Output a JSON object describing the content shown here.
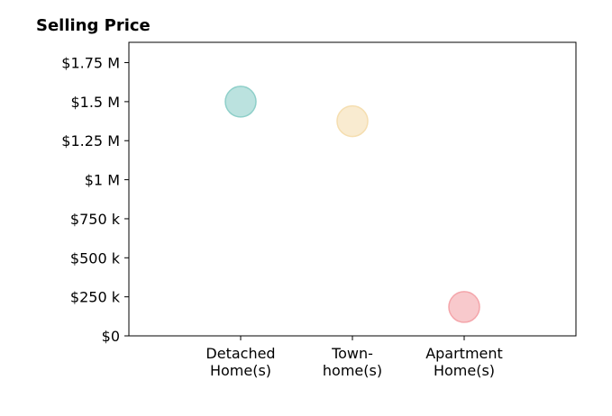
{
  "chart_data": {
    "type": "scatter",
    "title": "Selling Price",
    "xlabel": "",
    "ylabel": "",
    "categories": [
      [
        "Detached",
        "Home(s)"
      ],
      [
        "Town-",
        "home(s)"
      ],
      [
        "Apartment",
        "Home(s)"
      ]
    ],
    "values": [
      1500000,
      1375000,
      185000
    ],
    "colors": [
      "#8ecfc9",
      "#f5deb0",
      "#f4a5aa"
    ],
    "y_ticks": [
      0,
      250000,
      500000,
      750000,
      1000000,
      1250000,
      1500000,
      1750000
    ],
    "y_tick_labels": [
      "$0",
      "$250 k",
      "$500 k",
      "$750 k",
      "$1 M",
      "$1.25 M",
      "$1.5 M",
      "$1.75 M"
    ],
    "ylim": [
      0,
      1880000
    ],
    "xlim": [
      0,
      4
    ],
    "x_positions": [
      1,
      2,
      3
    ],
    "grid": false,
    "legend": "none"
  }
}
